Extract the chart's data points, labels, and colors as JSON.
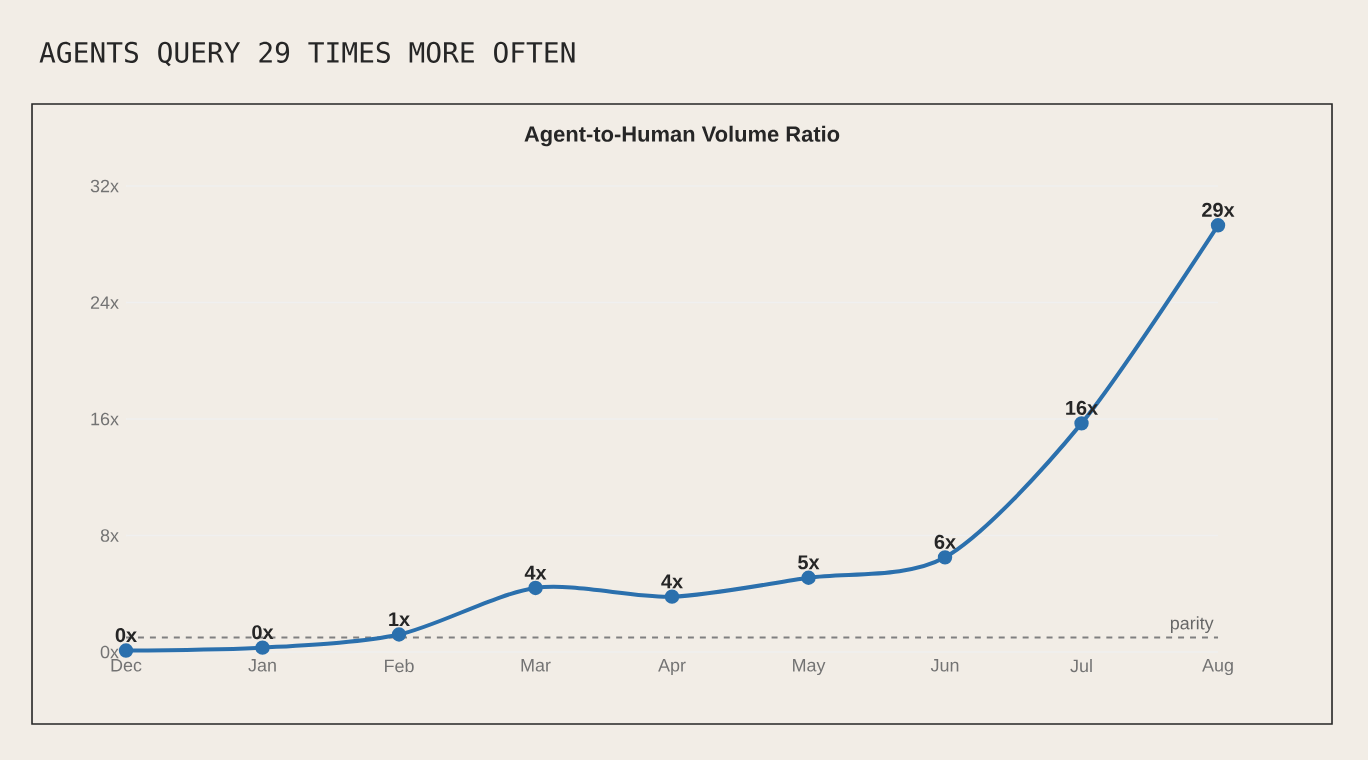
{
  "chart_data": {
    "type": "line",
    "title": "AGENTS QUERY 29 TIMES MORE OFTEN",
    "subtitle": "Agent-to-Human Volume Ratio",
    "categories": [
      "Dec",
      "Jan",
      "Feb",
      "Mar",
      "Apr",
      "May",
      "Jun",
      "Jul",
      "Aug"
    ],
    "values": [
      0.1,
      0.3,
      1.2,
      4.4,
      3.8,
      5.1,
      6.5,
      15.7,
      29.3
    ],
    "value_labels": [
      "0x",
      "0x",
      "1x",
      "4x",
      "4x",
      "5x",
      "6x",
      "16x",
      "29x"
    ],
    "color": "#2b70ad",
    "marker": "circle",
    "grid": "y",
    "ylim": [
      0,
      32
    ],
    "yticks": [
      {
        "value": 0,
        "label": "0x"
      },
      {
        "value": 8,
        "label": "8x"
      },
      {
        "value": 16,
        "label": "16x"
      },
      {
        "value": 24,
        "label": "24x"
      },
      {
        "value": 32,
        "label": "32x"
      }
    ],
    "ref_lines": [
      {
        "axis": "y",
        "value": 1,
        "label": "parity",
        "color": "#808080",
        "line_style": "dashed"
      }
    ]
  }
}
